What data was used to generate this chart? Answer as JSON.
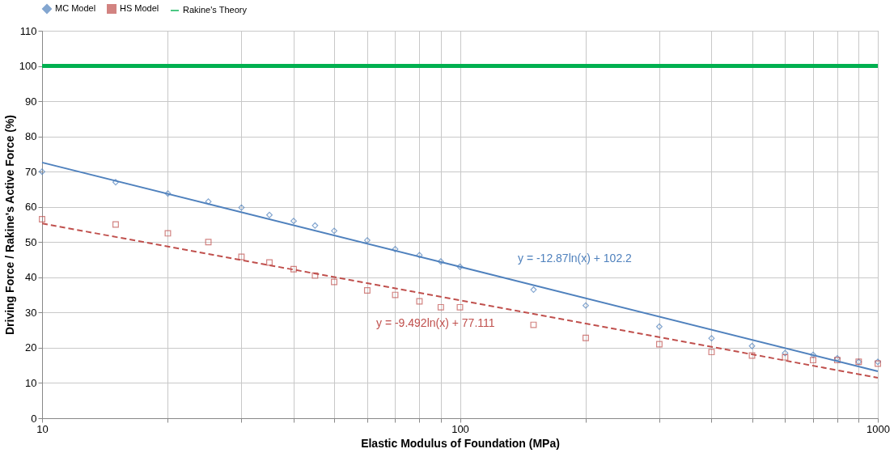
{
  "chart_data": {
    "type": "scatter",
    "xlabel": "Elastic Modulus of Foundation (MPa)",
    "ylabel": "Driving Force / Rakine's Active Force  (%)",
    "x": [
      10,
      15,
      20,
      25,
      30,
      35,
      40,
      45,
      50,
      60,
      70,
      80,
      90,
      100,
      150,
      200,
      300,
      400,
      500,
      600,
      700,
      800,
      900,
      1000
    ],
    "series": [
      {
        "name": "MC Model",
        "marker": "diamond",
        "color": "#4f81bd",
        "values": [
          70,
          67,
          63.8,
          61.5,
          59.8,
          57.7,
          56,
          54.7,
          53.2,
          50.5,
          48,
          46.3,
          44.5,
          43,
          36.5,
          32,
          26,
          22.7,
          20.5,
          18.5,
          18,
          17,
          16,
          16
        ]
      },
      {
        "name": "HS Model",
        "marker": "square",
        "color": "#c0504d",
        "values": [
          56.5,
          55,
          52.5,
          50,
          45.8,
          44.2,
          42.3,
          40.5,
          38.7,
          36.3,
          35,
          33.2,
          31.5,
          31.5,
          26.5,
          22.8,
          21,
          18.8,
          17.8,
          17.3,
          16.5,
          16.5,
          16,
          15.5
        ]
      },
      {
        "name": "Rakine's Theory",
        "type": "line",
        "line_style": "solid",
        "color": "#00b050",
        "values": [
          100,
          100,
          100,
          100,
          100,
          100,
          100,
          100,
          100,
          100,
          100,
          100,
          100,
          100,
          100,
          100,
          100,
          100,
          100,
          100,
          100,
          100,
          100,
          100
        ]
      },
      {
        "type": "line",
        "line_style": "solid",
        "color": "#4f81bd",
        "x": [
          10,
          100,
          1000
        ],
        "values": [
          72.6,
          43,
          13.3
        ]
      },
      {
        "type": "line",
        "line_style": "dashed",
        "color": "#c0504d",
        "x": [
          10,
          100,
          1000
        ],
        "values": [
          55.3,
          33.5,
          11.5
        ]
      }
    ],
    "annotations": [
      "y = -12.87ln(x) + 102.2",
      "y = -9.492ln(x) + 77.111"
    ],
    "log": "x",
    "xlim": [
      10,
      1000
    ],
    "xticks": [
      10,
      {
        "value": 20,
        "label": null
      },
      {
        "value": 30,
        "label": null
      },
      {
        "value": 40,
        "label": null
      },
      {
        "value": 50,
        "label": null
      },
      {
        "value": 60,
        "label": null
      },
      {
        "value": 70,
        "label": null
      },
      {
        "value": 80,
        "label": null
      },
      {
        "value": 90,
        "label": null
      },
      100,
      {
        "value": 200,
        "label": null
      },
      {
        "value": 300,
        "label": null
      },
      {
        "value": 400,
        "label": null
      },
      {
        "value": 500,
        "label": null
      },
      {
        "value": 600,
        "label": null
      },
      {
        "value": 700,
        "label": null
      },
      {
        "value": 800,
        "label": null
      },
      {
        "value": 900,
        "label": null
      },
      1000
    ],
    "ylim": [
      0,
      110
    ],
    "yticks": [
      0,
      10,
      20,
      30,
      40,
      50,
      60,
      70,
      80,
      90,
      100,
      110
    ],
    "grid": true,
    "legend": "top"
  }
}
